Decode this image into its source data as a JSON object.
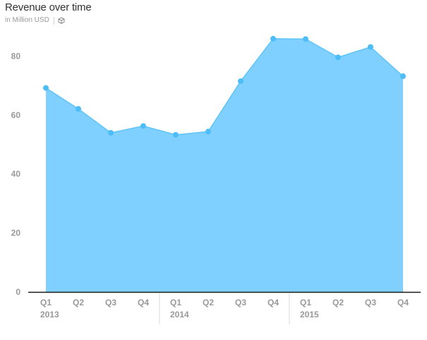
{
  "header": {
    "title": "Revenue over time",
    "subtitle": "in Million USD",
    "info_icon": "cube-icon"
  },
  "chart_data": {
    "type": "area",
    "title": "Revenue over time",
    "subtitle": "in Million USD",
    "xlabel": "",
    "ylabel": "",
    "categories": [
      "Q1",
      "Q2",
      "Q3",
      "Q4",
      "Q1",
      "Q2",
      "Q3",
      "Q4",
      "Q1",
      "Q2",
      "Q3",
      "Q4"
    ],
    "year_groups": [
      {
        "label": "2013",
        "start": 0,
        "end": 3
      },
      {
        "label": "2014",
        "start": 4,
        "end": 7
      },
      {
        "label": "2015",
        "start": 8,
        "end": 11
      }
    ],
    "series": [
      {
        "values": [
          69.2,
          62.1,
          54.0,
          56.3,
          53.3,
          54.4,
          71.5,
          85.9,
          85.8,
          79.6,
          83.1,
          73.2
        ]
      }
    ],
    "yticks": [
      0,
      20,
      40,
      60,
      80
    ],
    "ylim": [
      0,
      90
    ],
    "grid": false,
    "legend": "none",
    "colors": {
      "fill": "#80d0ff",
      "line": "#5fc4fa",
      "marker": "#4dbdf7",
      "axis": "#1a1a1a",
      "divider": "#d9d9d9"
    }
  }
}
